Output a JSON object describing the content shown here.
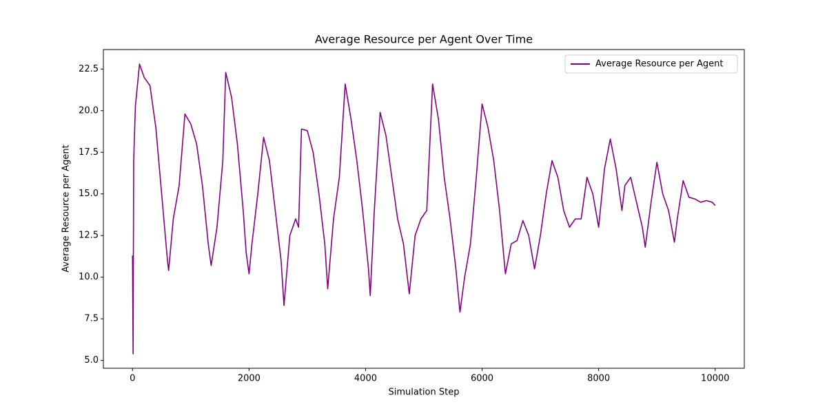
{
  "chart_data": {
    "type": "line",
    "title": "Average Resource per Agent Over Time",
    "x_label": "Simulation Step",
    "y_label": "Average Resource per Agent",
    "legend": "upper right",
    "x": [
      0,
      10,
      20,
      50,
      120,
      200,
      300,
      400,
      500,
      600,
      620,
      700,
      800,
      900,
      1000,
      1100,
      1200,
      1300,
      1350,
      1450,
      1550,
      1600,
      1700,
      1800,
      1900,
      1950,
      2000,
      2050,
      2150,
      2250,
      2350,
      2450,
      2550,
      2600,
      2700,
      2800,
      2850,
      2900,
      3000,
      3100,
      3200,
      3300,
      3350,
      3450,
      3550,
      3650,
      3750,
      3850,
      3950,
      4050,
      4080,
      4150,
      4250,
      4350,
      4450,
      4550,
      4650,
      4750,
      4850,
      4950,
      5050,
      5150,
      5250,
      5350,
      5450,
      5550,
      5620,
      5700,
      5800,
      5900,
      6000,
      6100,
      6200,
      6300,
      6400,
      6500,
      6600,
      6700,
      6800,
      6900,
      7000,
      7100,
      7200,
      7300,
      7400,
      7500,
      7600,
      7700,
      7800,
      7900,
      8000,
      8100,
      8200,
      8300,
      8400,
      8450,
      8550,
      8650,
      8750,
      8800,
      8900,
      9000,
      9100,
      9200,
      9300,
      9350,
      9450,
      9550,
      9650,
      9750,
      9850,
      9950,
      10000
    ],
    "series": [
      {
        "name": "Average Resource per Agent",
        "color": "#800080",
        "values": [
          11.3,
          5.4,
          17,
          20.3,
          22.8,
          22,
          21.5,
          19,
          15,
          11,
          10.4,
          13.5,
          15.5,
          19.8,
          19.2,
          18,
          15.5,
          12,
          10.7,
          13,
          17,
          22.3,
          20.8,
          18,
          14,
          11.5,
          10.2,
          12,
          15,
          18.4,
          17,
          14,
          11,
          8.3,
          12.5,
          13.5,
          13,
          18.9,
          18.8,
          17.5,
          15,
          12,
          9.3,
          13.5,
          16,
          21.6,
          19.5,
          17,
          14,
          10.5,
          8.9,
          14,
          19.9,
          18.5,
          16,
          13.5,
          12,
          9,
          12.5,
          13.5,
          14,
          21.6,
          19.5,
          16,
          13.5,
          10.5,
          7.9,
          10,
          12,
          16,
          20.4,
          19,
          17,
          14,
          10.2,
          12,
          12.2,
          13.4,
          12.5,
          10.5,
          12.5,
          15,
          17,
          16,
          14,
          13,
          13.5,
          13.5,
          16,
          15,
          13,
          16.5,
          18.3,
          16.5,
          14,
          15.5,
          16,
          14.5,
          13,
          11.8,
          14.5,
          16.9,
          15,
          14,
          12.1,
          13.5,
          15.8,
          14.8,
          14.7,
          14.5,
          14.6,
          14.5,
          14.3
        ]
      }
    ],
    "xlim": [
      -500,
      10500
    ],
    "xticks": [
      0,
      2000,
      4000,
      6000,
      8000,
      10000
    ],
    "ylim": [
      4.53,
      23.67
    ],
    "yticks": [
      {
        "value": 5,
        "label": "5.0"
      },
      7.5,
      {
        "value": 10,
        "label": "10.0"
      },
      12.5,
      {
        "value": 15,
        "label": "15.0"
      },
      17.5,
      {
        "value": 20,
        "label": "20.0"
      },
      22.5
    ]
  }
}
